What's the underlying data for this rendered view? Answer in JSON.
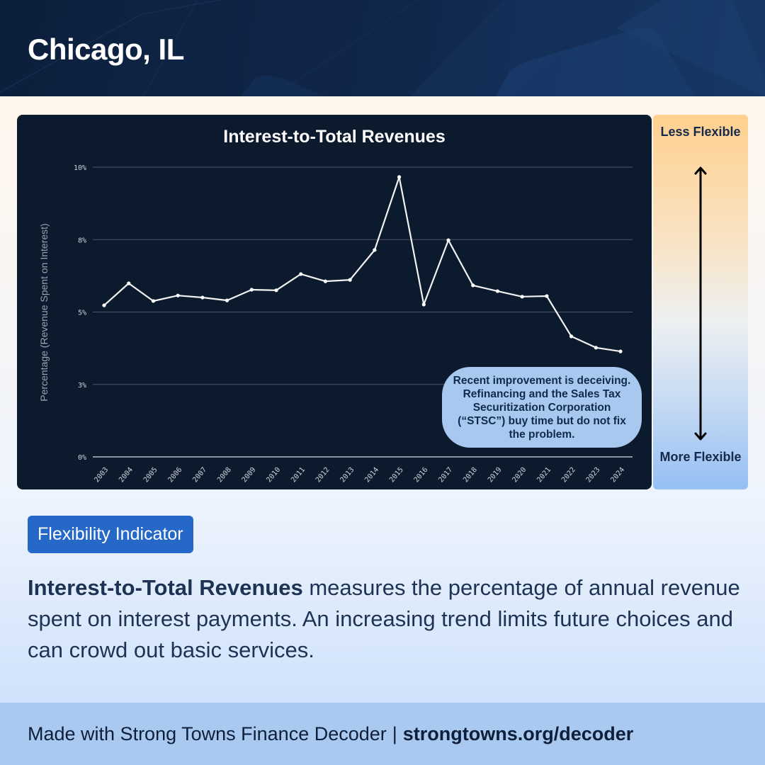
{
  "header": {
    "city": "Chicago, IL"
  },
  "chart": {
    "title": "Interest-to-Total Revenues",
    "y_axis_label": "Percentage (Revenue Spent on Interest)",
    "y_ticks": [
      "0%",
      "3%",
      "5%",
      "8%",
      "10%"
    ],
    "callout": "Recent improvement is deceiving. Refinancing and the Sales Tax Securitization Corporation (“STSC”) buy time but do not fix the problem."
  },
  "flexibility_scale": {
    "top_label": "Less Flexible",
    "bottom_label": "More Flexible",
    "top_color": "#ffd08e",
    "bottom_color": "#95bff3"
  },
  "badge": {
    "label": "Flexibility Indicator",
    "color": "#2568c7"
  },
  "description": {
    "term": "Interest-to-Total Revenues",
    "text": " measures the percentage of annual revenue spent on interest payments. An increasing trend limits future choices and can crowd out basic services."
  },
  "footer": {
    "made_with": "Made with Strong Towns Finance Decoder",
    "separator": "|",
    "url": "strongtowns.org/decoder"
  },
  "chart_data": {
    "type": "line",
    "title": "Interest-to-Total Revenues",
    "xlabel": "",
    "ylabel": "Percentage (Revenue Spent on Interest)",
    "categories": [
      "2003",
      "2004",
      "2005",
      "2006",
      "2007",
      "2008",
      "2009",
      "2010",
      "2011",
      "2012",
      "2013",
      "2014",
      "2015",
      "2016",
      "2017",
      "2018",
      "2019",
      "2020",
      "2021",
      "2022",
      "2023",
      "2024"
    ],
    "series": [
      {
        "name": "Interest-to-Total Revenues",
        "values": [
          5.23,
          5.99,
          5.38,
          5.57,
          5.5,
          5.4,
          5.77,
          5.75,
          6.31,
          6.06,
          6.11,
          7.14,
          9.66,
          5.26,
          7.48,
          5.92,
          5.72,
          5.53,
          5.55,
          4.16,
          3.77,
          3.64
        ]
      }
    ],
    "ylim": [
      0,
      10
    ],
    "y_gridlines": [
      0,
      2.5,
      5,
      7.5,
      10
    ],
    "y_tick_labels": [
      "0%",
      "3%",
      "5%",
      "8%",
      "10%"
    ],
    "grid": true,
    "legend": "none",
    "line_color": "#f2f2f2",
    "background": "#0c1a2d",
    "annotation": "Recent improvement is deceiving. Refinancing and the Sales Tax Securitization Corporation (“STSC”) buy time but do not fix the problem."
  }
}
